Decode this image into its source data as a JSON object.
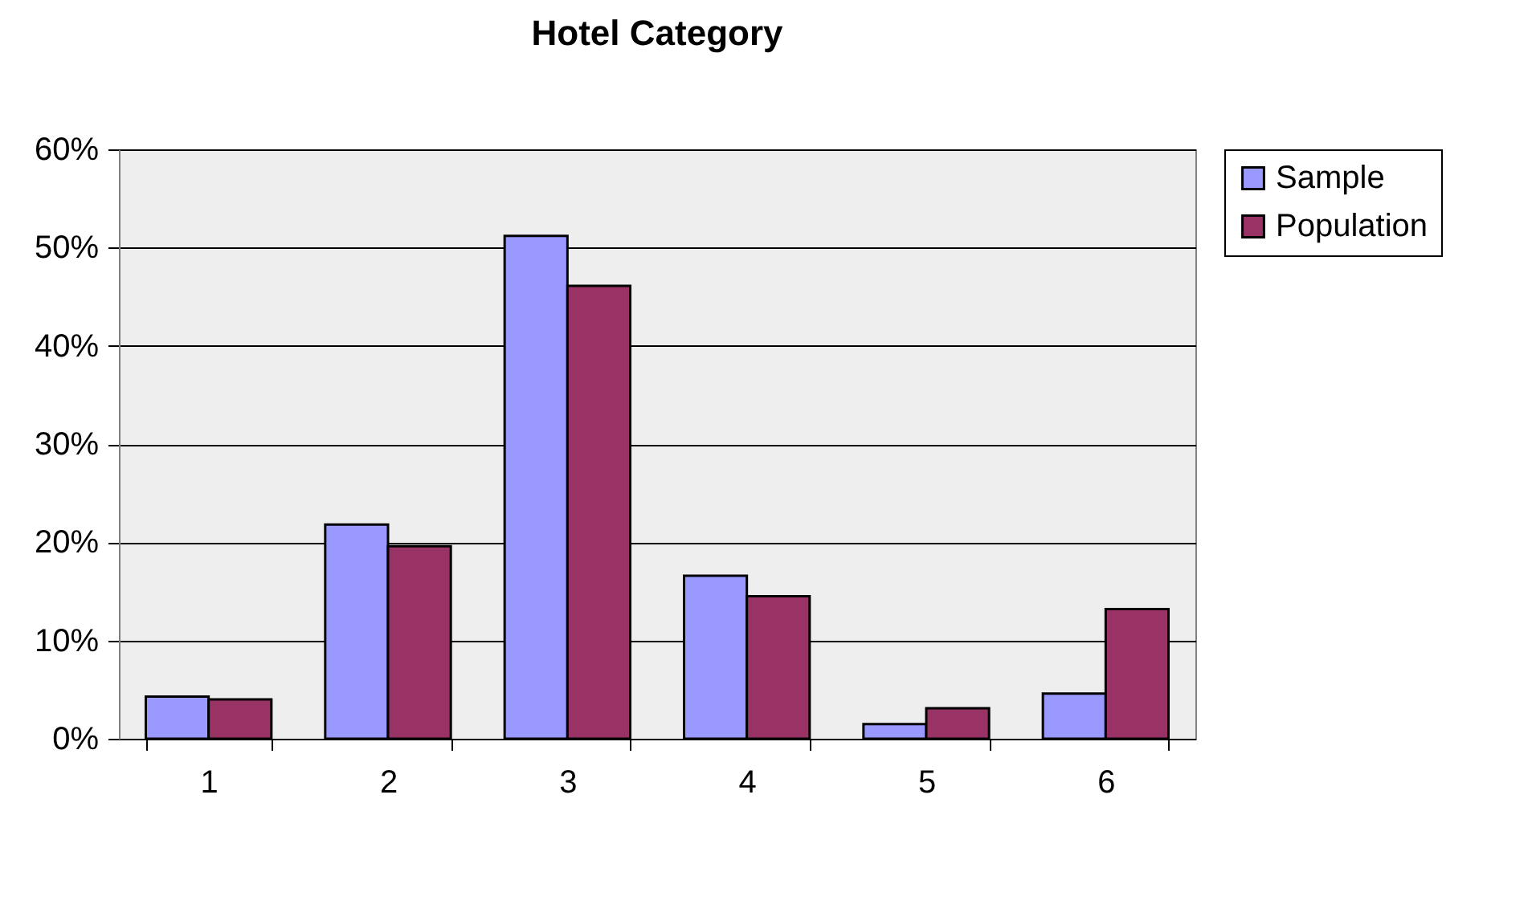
{
  "chart_data": {
    "type": "bar",
    "title": "Hotel Category",
    "categories": [
      "1",
      "2",
      "3",
      "4",
      "5",
      "6"
    ],
    "series": [
      {
        "name": "Sample",
        "color": "#9999ff",
        "values": [
          4.3,
          21.8,
          51.2,
          16.6,
          1.5,
          4.6
        ]
      },
      {
        "name": "Population",
        "color": "#993366",
        "values": [
          4.0,
          19.6,
          46.1,
          14.5,
          3.1,
          13.2
        ]
      }
    ],
    "ylim": [
      0,
      60
    ],
    "yticks": [
      {
        "value": 0,
        "label": "0%"
      },
      {
        "value": 10,
        "label": "10%"
      },
      {
        "value": 20,
        "label": "20%"
      },
      {
        "value": 30,
        "label": "30%"
      },
      {
        "value": 40,
        "label": "40%"
      },
      {
        "value": 50,
        "label": "50%"
      },
      {
        "value": 60,
        "label": "60%"
      }
    ],
    "grid": "y",
    "legend": "right"
  }
}
